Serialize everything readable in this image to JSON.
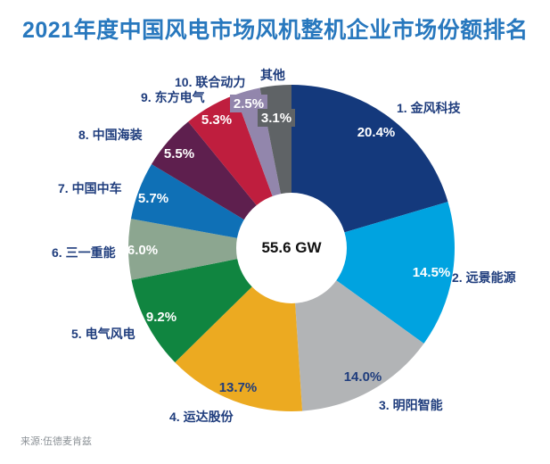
{
  "title": "2021年度中国风电市场风机整机企业市场份额排名",
  "source": "来源:伍德麦肯兹",
  "center_label": "55.6 GW",
  "colors": {
    "title": "#2878be",
    "name_label": "#1f3d7d",
    "source": "#8b9196",
    "background": "#ffffff",
    "donut_hole": "#ffffff"
  },
  "chart_data": {
    "type": "pie",
    "donut": true,
    "title": "2021年度中国风电市场风机整机企业市场份额排名",
    "center_total": "55.6 GW",
    "unit": "%",
    "start_angle_deg": 0,
    "direction": "clockwise",
    "legend_position": "around-slices",
    "slices": [
      {
        "rank": 1,
        "name": "金风科技",
        "display": "1. 金风科技",
        "value": 20.4,
        "pct_label": "20.4%",
        "color": "#14397c",
        "pct_color": "#ffffff"
      },
      {
        "rank": 2,
        "name": "远景能源",
        "display": "2. 远景能源",
        "value": 14.5,
        "pct_label": "14.5%",
        "color": "#00a3e0",
        "pct_color": "#ffffff"
      },
      {
        "rank": 3,
        "name": "明阳智能",
        "display": "3. 明阳智能",
        "value": 14.0,
        "pct_label": "14.0%",
        "color": "#b2b4b6",
        "pct_color": "#1f3d7d"
      },
      {
        "rank": 4,
        "name": "运达股份",
        "display": "4. 运达股份",
        "value": 13.7,
        "pct_label": "13.7%",
        "color": "#ecaa21",
        "pct_color": "#1f3d7d"
      },
      {
        "rank": 5,
        "name": "电气风电",
        "display": "5. 电气风电",
        "value": 9.2,
        "pct_label": "9.2%",
        "color": "#108540",
        "pct_color": "#ffffff"
      },
      {
        "rank": 6,
        "name": "三一重能",
        "display": "6. 三一重能",
        "value": 6.0,
        "pct_label": "6.0%",
        "color": "#8ca690",
        "pct_color": "#ffffff"
      },
      {
        "rank": 7,
        "name": "中国中车",
        "display": "7. 中国中车",
        "value": 5.7,
        "pct_label": "5.7%",
        "color": "#0f70b6",
        "pct_color": "#ffffff"
      },
      {
        "rank": 8,
        "name": "中国海装",
        "display": "8. 中国海装",
        "value": 5.5,
        "pct_label": "5.5%",
        "color": "#5e1f4e",
        "pct_color": "#ffffff"
      },
      {
        "rank": 9,
        "name": "东方电气",
        "display": "9. 东方电气",
        "value": 5.3,
        "pct_label": "5.3%",
        "color": "#bf1e3e",
        "pct_color": "#ffffff"
      },
      {
        "rank": 10,
        "name": "联合动力",
        "display": "10. 联合动力",
        "value": 2.5,
        "pct_label": "2.5%",
        "color": "#9286ac",
        "pct_color": "#ffffff",
        "chip": true
      },
      {
        "rank": null,
        "name": "其他",
        "display": "其他",
        "value": 3.1,
        "pct_label": "3.1%",
        "color": "#5f6366",
        "pct_color": "#ffffff",
        "chip": true
      }
    ]
  }
}
